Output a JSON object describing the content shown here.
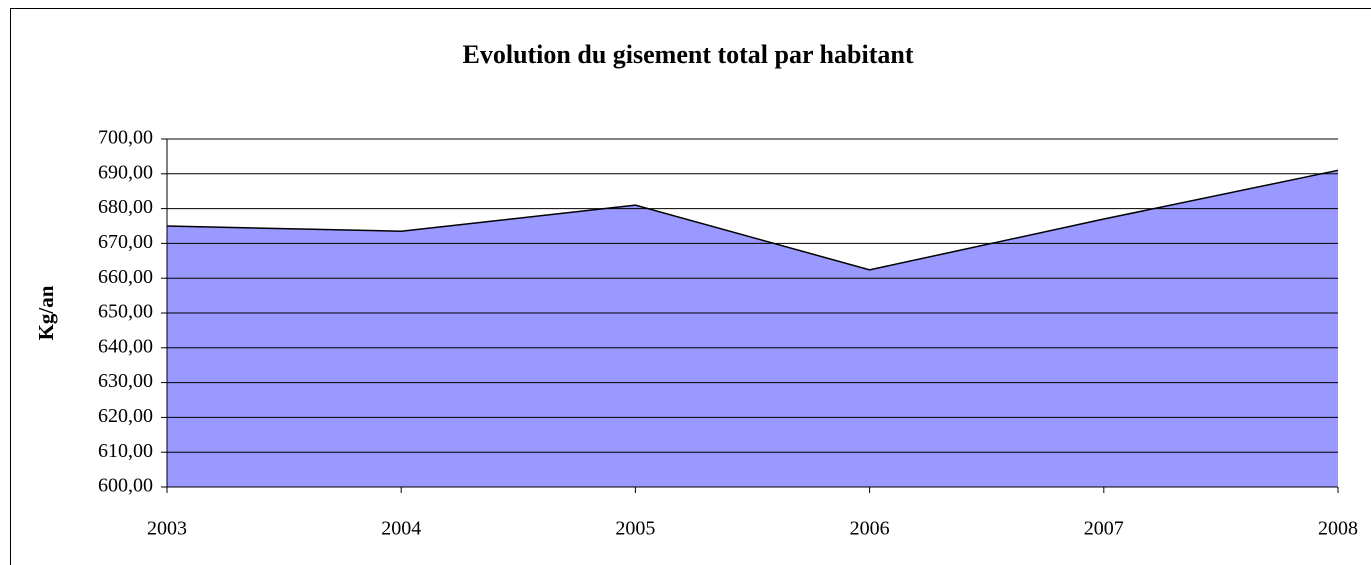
{
  "chart_data": {
    "type": "area",
    "title": "Evolution du gisement total par habitant",
    "y_label": "Kg/an",
    "categories": [
      "2003",
      "2004",
      "2005",
      "2006",
      "2007",
      "2008"
    ],
    "values": [
      675,
      673.5,
      681,
      662.4,
      677,
      691
    ],
    "color": "#9999ff",
    "ylim": [
      600,
      700
    ],
    "yticks": [
      {
        "value": 600,
        "label": "600,00"
      },
      {
        "value": 610,
        "label": "610,00"
      },
      {
        "value": 620,
        "label": "620,00"
      },
      {
        "value": 630,
        "label": "630,00"
      },
      {
        "value": 640,
        "label": "640,00"
      },
      {
        "value": 650,
        "label": "650,00"
      },
      {
        "value": 660,
        "label": "660,00"
      },
      {
        "value": 670,
        "label": "670,00"
      },
      {
        "value": 680,
        "label": "680,00"
      },
      {
        "value": 690,
        "label": "690,00"
      },
      {
        "value": 700,
        "label": "700,00"
      }
    ],
    "grid": true
  }
}
